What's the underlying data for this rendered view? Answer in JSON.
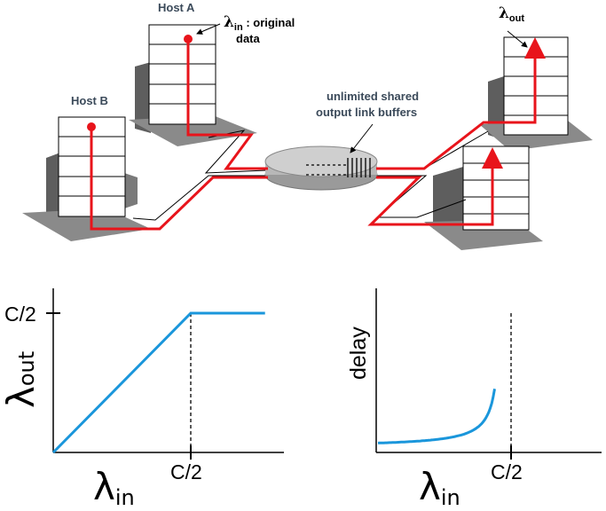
{
  "top": {
    "host_a": "Host A",
    "host_b": "Host B",
    "lambda_in_sym": "λ",
    "lambda_in_sub": "in",
    "lambda_in_colon": " : original",
    "lambda_in_desc2": "data",
    "lambda_out_sym": "λ",
    "lambda_out_sub": "out",
    "buffer_line1": "unlimited shared",
    "buffer_line2": "output link buffers"
  },
  "colors": {
    "flow": "#e8141b",
    "curve": "#1a96db",
    "label": "#3b4a5a"
  },
  "chart_data": [
    {
      "type": "line",
      "ylabel_sym": "λ",
      "ylabel_sub": "out",
      "xlabel_sym": "λ",
      "xlabel_sub": "in",
      "x_tick": "C/2",
      "y_tick": "C/2",
      "series": [
        {
          "x": [
            0,
            0.5,
            0.5,
            0.77
          ],
          "y": [
            0,
            0.5,
            0.5,
            0.5
          ]
        }
      ]
    },
    {
      "type": "line",
      "ylabel": "delay",
      "xlabel_sym": "λ",
      "xlabel_sub": "in",
      "x_tick": "C/2",
      "series": [
        {
          "shape": "delay rises sharply as λin approaches C/2"
        }
      ]
    }
  ]
}
